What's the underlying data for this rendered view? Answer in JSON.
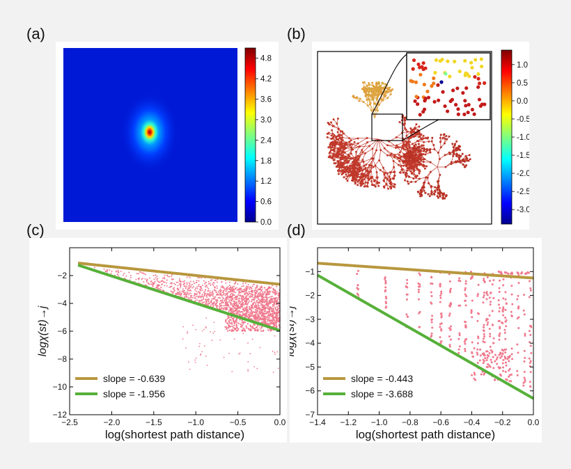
{
  "panels": {
    "a": {
      "letter": "(a)"
    },
    "b": {
      "letter": "(b)"
    },
    "c": {
      "letter": "(c)"
    },
    "d": {
      "letter": "(d)"
    }
  },
  "chart_data": [
    {
      "type": "heatmap",
      "panel": "a",
      "description_colormap": "jet",
      "colorbar": {
        "ticks": [
          "0.0",
          "0.6",
          "1.2",
          "1.8",
          "2.4",
          "3.0",
          "3.6",
          "4.2",
          "4.8"
        ],
        "range": [
          0,
          5.1
        ]
      },
      "peak_location": "center",
      "background_value": 0.3
    },
    {
      "type": "scatter",
      "panel": "b",
      "description_colormap": "jet",
      "colorbar": {
        "ticks": [
          "1.0",
          "0.5",
          "0.0",
          "-0.5",
          "-1.0",
          "-1.5",
          "-2.0",
          "-2.5",
          "-3.0"
        ],
        "range": [
          -3.4,
          1.4
        ]
      },
      "has_inset": true
    },
    {
      "type": "scatter",
      "panel": "c",
      "xlabel": "log(shortest path distance)",
      "ylabel": "logχ(st)→j",
      "xlim": [
        -2.5,
        0.0
      ],
      "ylim": [
        -12,
        0
      ],
      "xticks": [
        "−2.5",
        "−2.0",
        "−1.5",
        "−1.0",
        "−0.5",
        "0.0"
      ],
      "yticks": [
        "−2",
        "−4",
        "−6",
        "−8",
        "−10",
        "−12"
      ],
      "legend_position": "lower-left",
      "series": [
        {
          "name": "slope = -0.639",
          "kind": "line",
          "color": "#b8973e",
          "x": [
            -2.4,
            0.0
          ],
          "y": [
            -1.1,
            -2.63
          ]
        },
        {
          "name": "slope = -1.956",
          "kind": "line",
          "color": "#56b039",
          "x": [
            -2.4,
            0.0
          ],
          "y": [
            -1.25,
            -5.95
          ]
        }
      ],
      "scatter_color": "#f07a8e"
    },
    {
      "type": "scatter",
      "panel": "d",
      "xlabel": "log(shortest path distance)",
      "ylabel": "logχ(st)→j",
      "xlim": [
        -1.4,
        0.0
      ],
      "ylim": [
        -7,
        0
      ],
      "xticks": [
        "−1.4",
        "−1.2",
        "−1.0",
        "−0.8",
        "−0.6",
        "−0.4",
        "−0.2",
        "0.0"
      ],
      "yticks": [
        "−1",
        "−2",
        "−3",
        "−4",
        "−5",
        "−6",
        "−7"
      ],
      "legend_position": "lower-left",
      "series": [
        {
          "name": "slope = -0.443",
          "kind": "line",
          "color": "#b8973e",
          "x": [
            -1.4,
            0.0
          ],
          "y": [
            -0.65,
            -1.27
          ]
        },
        {
          "name": "slope = -3.688",
          "kind": "line",
          "color": "#56b039",
          "x": [
            -1.4,
            0.0
          ],
          "y": [
            -1.15,
            -6.32
          ]
        }
      ],
      "scatter_color": "#f07a8e"
    }
  ]
}
